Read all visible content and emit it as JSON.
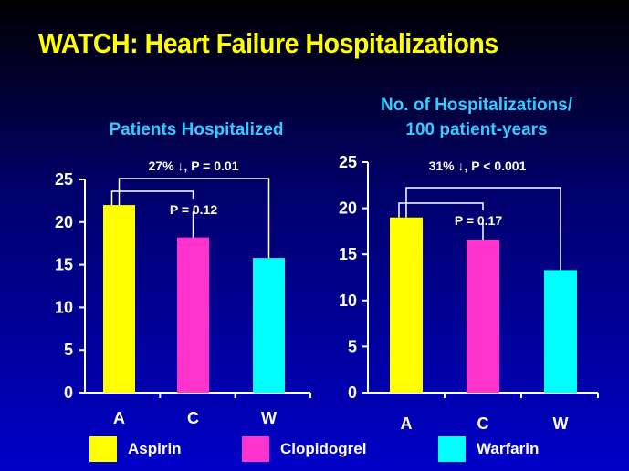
{
  "title": "WATCH: Heart Failure Hospitalizations",
  "chart_data": [
    {
      "type": "bar",
      "title": "Patients Hospitalized",
      "categories": [
        "A",
        "C",
        "W"
      ],
      "values": [
        22,
        18.2,
        15.8
      ],
      "colors": [
        "#ffff00",
        "#ff33cc",
        "#00ffff"
      ],
      "ylim": [
        0,
        25
      ],
      "yticks": [
        "0",
        "5",
        "10",
        "15",
        "20",
        "25"
      ],
      "grid": false,
      "annotations": [
        {
          "text": "27% ↓,  P = 0.01",
          "between": [
            "A",
            "W"
          ]
        },
        {
          "text": "P = 0.12",
          "between": [
            "A",
            "C"
          ]
        }
      ]
    },
    {
      "type": "bar",
      "title_lines": [
        "No. of Hospitalizations/",
        "100 patient-years"
      ],
      "categories": [
        "A",
        "C",
        "W"
      ],
      "values": [
        19,
        16.6,
        13.3
      ],
      "colors": [
        "#ffff00",
        "#ff33cc",
        "#00ffff"
      ],
      "ylim": [
        0,
        25
      ],
      "yticks": [
        "0",
        "5",
        "10",
        "15",
        "20",
        "25"
      ],
      "grid": false,
      "annotations": [
        {
          "text": "31% ↓, P < 0.001",
          "between": [
            "A",
            "W"
          ]
        },
        {
          "text": "P  = 0.17",
          "between": [
            "A",
            "C"
          ]
        }
      ]
    }
  ],
  "legend": [
    {
      "label": "Aspirin",
      "color": "#ffff00"
    },
    {
      "label": "Clopidogrel",
      "color": "#ff33cc"
    },
    {
      "label": "Warfarin",
      "color": "#00ffff"
    }
  ]
}
